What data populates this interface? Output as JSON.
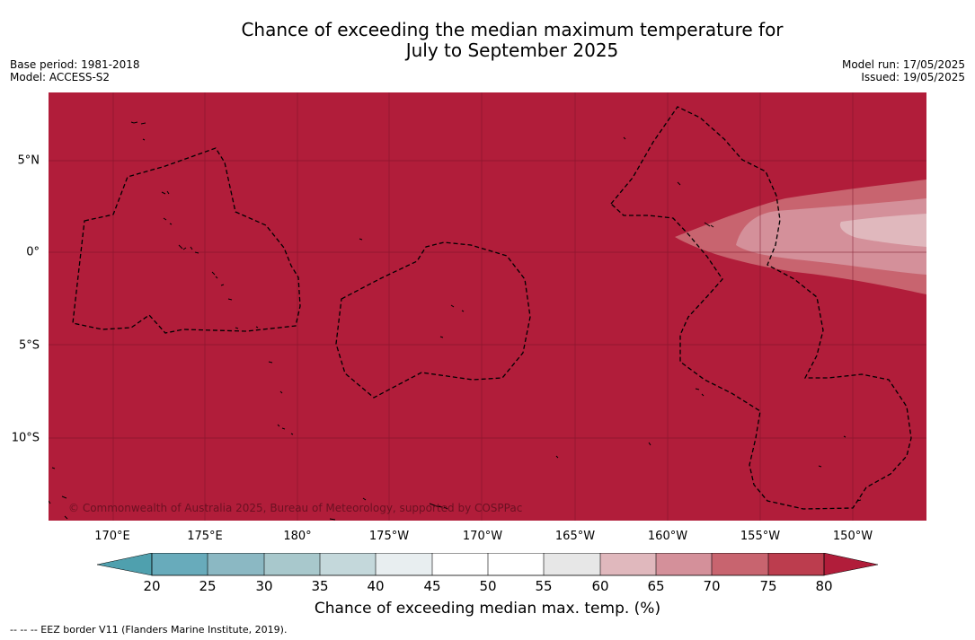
{
  "title_line1": "Chance of exceeding the median maximum temperature for",
  "title_line2": "July to September 2025",
  "base_period": "Base period: 1981-2018",
  "model": "Model: ACCESS-S2",
  "model_run": "Model run: 17/05/2025",
  "issued": "Issued: 19/05/2025",
  "copyright": "© Commonwealth of Australia 2025, Bureau of Meteorology, supported by COSPPac",
  "lon_ticks": [
    "170°E",
    "175°E",
    "180°",
    "175°W",
    "170°W",
    "165°W",
    "160°W",
    "155°W",
    "150°W"
  ],
  "lat_ticks": [
    "5°N",
    "0°",
    "5°S",
    "10°S"
  ],
  "colorbar": {
    "ticks": [
      "20",
      "25",
      "30",
      "35",
      "40",
      "45",
      "50",
      "55",
      "60",
      "65",
      "70",
      "75",
      "80"
    ],
    "label": "Chance of exceeding median max. temp. (%)",
    "colors": {
      "below20": "#4fa0ae",
      "20-25": "#68abbb",
      "25-30": "#8bb8c3",
      "30-35": "#a8c8cc",
      "35-40": "#c4d8db",
      "40-45": "#e8eef0",
      "45-50": "#ffffff",
      "50-55": "#ffffff",
      "55-60": "#e7e7e7",
      "60-65": "#e0b8bd",
      "65-70": "#d4909a",
      "70-75": "#c8646f",
      "75-80": "#bc3d4e",
      "above80": "#b11d3a"
    }
  },
  "footer": "--  --  -- EEZ border V11 (Flanders Marine Institute, 2019)."
}
